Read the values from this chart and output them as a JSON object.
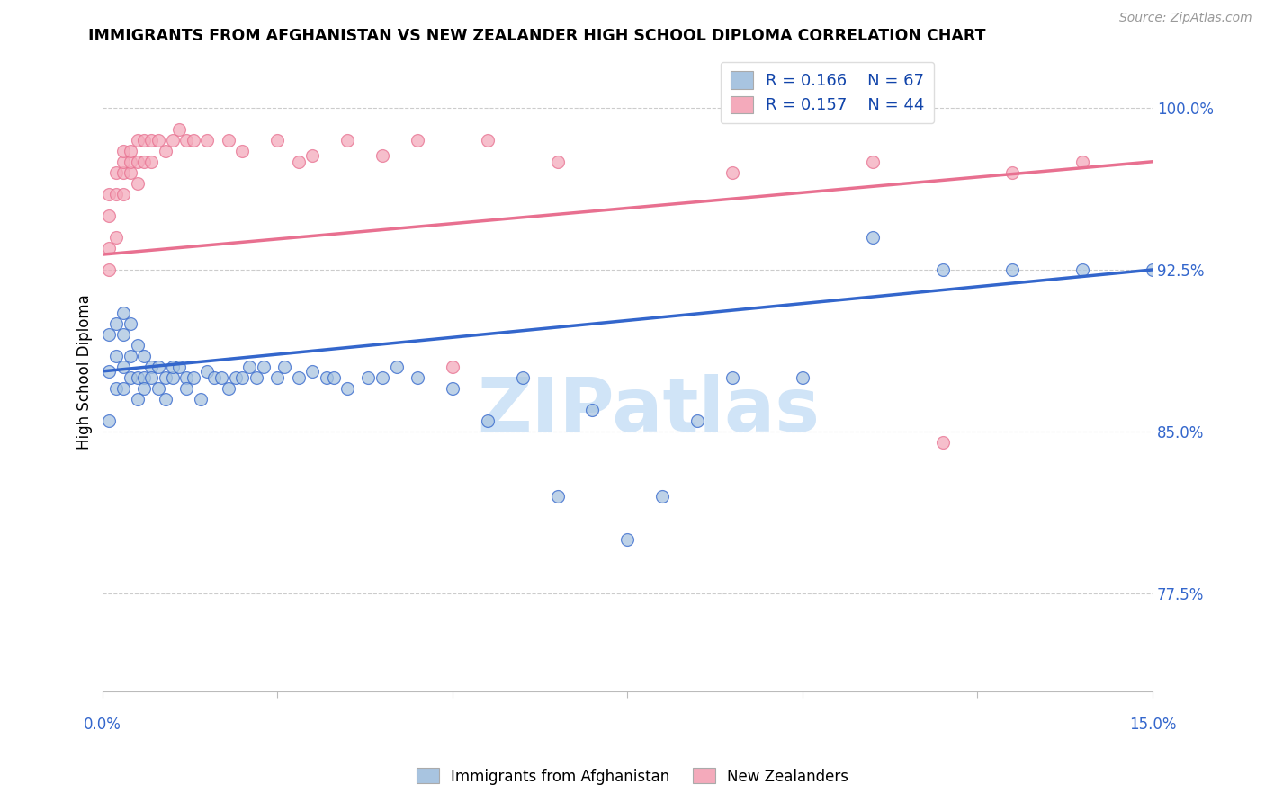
{
  "title": "IMMIGRANTS FROM AFGHANISTAN VS NEW ZEALANDER HIGH SCHOOL DIPLOMA CORRELATION CHART",
  "source": "Source: ZipAtlas.com",
  "ylabel": "High School Diploma",
  "ytick_labels": [
    "77.5%",
    "85.0%",
    "92.5%",
    "100.0%"
  ],
  "ytick_values": [
    0.775,
    0.85,
    0.925,
    1.0
  ],
  "xlim": [
    0.0,
    0.15
  ],
  "ylim": [
    0.73,
    1.025
  ],
  "color_blue": "#A8C4E0",
  "color_pink": "#F4AABB",
  "color_blue_line": "#3366CC",
  "color_pink_line": "#E87090",
  "watermark_color": "#D0E4F7",
  "legend_label1": "Immigrants from Afghanistan",
  "legend_label2": "New Zealanders",
  "blue_trend_x0": 0.0,
  "blue_trend_y0": 0.878,
  "blue_trend_x1": 0.15,
  "blue_trend_y1": 0.925,
  "pink_trend_x0": 0.0,
  "pink_trend_y0": 0.932,
  "pink_trend_x1": 0.15,
  "pink_trend_y1": 0.975,
  "blue_scatter_x": [
    0.001,
    0.001,
    0.002,
    0.002,
    0.002,
    0.003,
    0.003,
    0.003,
    0.003,
    0.004,
    0.004,
    0.004,
    0.005,
    0.005,
    0.005,
    0.006,
    0.006,
    0.006,
    0.007,
    0.007,
    0.008,
    0.008,
    0.009,
    0.009,
    0.01,
    0.01,
    0.011,
    0.012,
    0.012,
    0.013,
    0.014,
    0.015,
    0.016,
    0.017,
    0.018,
    0.019,
    0.02,
    0.021,
    0.022,
    0.023,
    0.025,
    0.026,
    0.028,
    0.03,
    0.032,
    0.033,
    0.035,
    0.038,
    0.04,
    0.042,
    0.045,
    0.05,
    0.055,
    0.06,
    0.065,
    0.07,
    0.075,
    0.08,
    0.085,
    0.09,
    0.1,
    0.11,
    0.12,
    0.13,
    0.14,
    0.15,
    0.001
  ],
  "blue_scatter_y": [
    0.878,
    0.895,
    0.885,
    0.9,
    0.87,
    0.88,
    0.895,
    0.87,
    0.905,
    0.885,
    0.875,
    0.9,
    0.875,
    0.865,
    0.89,
    0.875,
    0.885,
    0.87,
    0.88,
    0.875,
    0.88,
    0.87,
    0.875,
    0.865,
    0.875,
    0.88,
    0.88,
    0.875,
    0.87,
    0.875,
    0.865,
    0.878,
    0.875,
    0.875,
    0.87,
    0.875,
    0.875,
    0.88,
    0.875,
    0.88,
    0.875,
    0.88,
    0.875,
    0.878,
    0.875,
    0.875,
    0.87,
    0.875,
    0.875,
    0.88,
    0.875,
    0.87,
    0.855,
    0.875,
    0.82,
    0.86,
    0.8,
    0.82,
    0.855,
    0.875,
    0.875,
    0.94,
    0.925,
    0.925,
    0.925,
    0.925,
    0.855
  ],
  "pink_scatter_x": [
    0.001,
    0.001,
    0.001,
    0.002,
    0.002,
    0.002,
    0.003,
    0.003,
    0.003,
    0.003,
    0.004,
    0.004,
    0.004,
    0.005,
    0.005,
    0.005,
    0.006,
    0.006,
    0.007,
    0.007,
    0.008,
    0.009,
    0.01,
    0.011,
    0.012,
    0.013,
    0.015,
    0.018,
    0.02,
    0.025,
    0.028,
    0.03,
    0.035,
    0.04,
    0.045,
    0.05,
    0.055,
    0.065,
    0.09,
    0.11,
    0.12,
    0.13,
    0.14,
    0.001
  ],
  "pink_scatter_y": [
    0.935,
    0.95,
    0.96,
    0.94,
    0.97,
    0.96,
    0.96,
    0.97,
    0.975,
    0.98,
    0.97,
    0.975,
    0.98,
    0.965,
    0.975,
    0.985,
    0.975,
    0.985,
    0.975,
    0.985,
    0.985,
    0.98,
    0.985,
    0.99,
    0.985,
    0.985,
    0.985,
    0.985,
    0.98,
    0.985,
    0.975,
    0.978,
    0.985,
    0.978,
    0.985,
    0.88,
    0.985,
    0.975,
    0.97,
    0.975,
    0.845,
    0.97,
    0.975,
    0.925
  ]
}
